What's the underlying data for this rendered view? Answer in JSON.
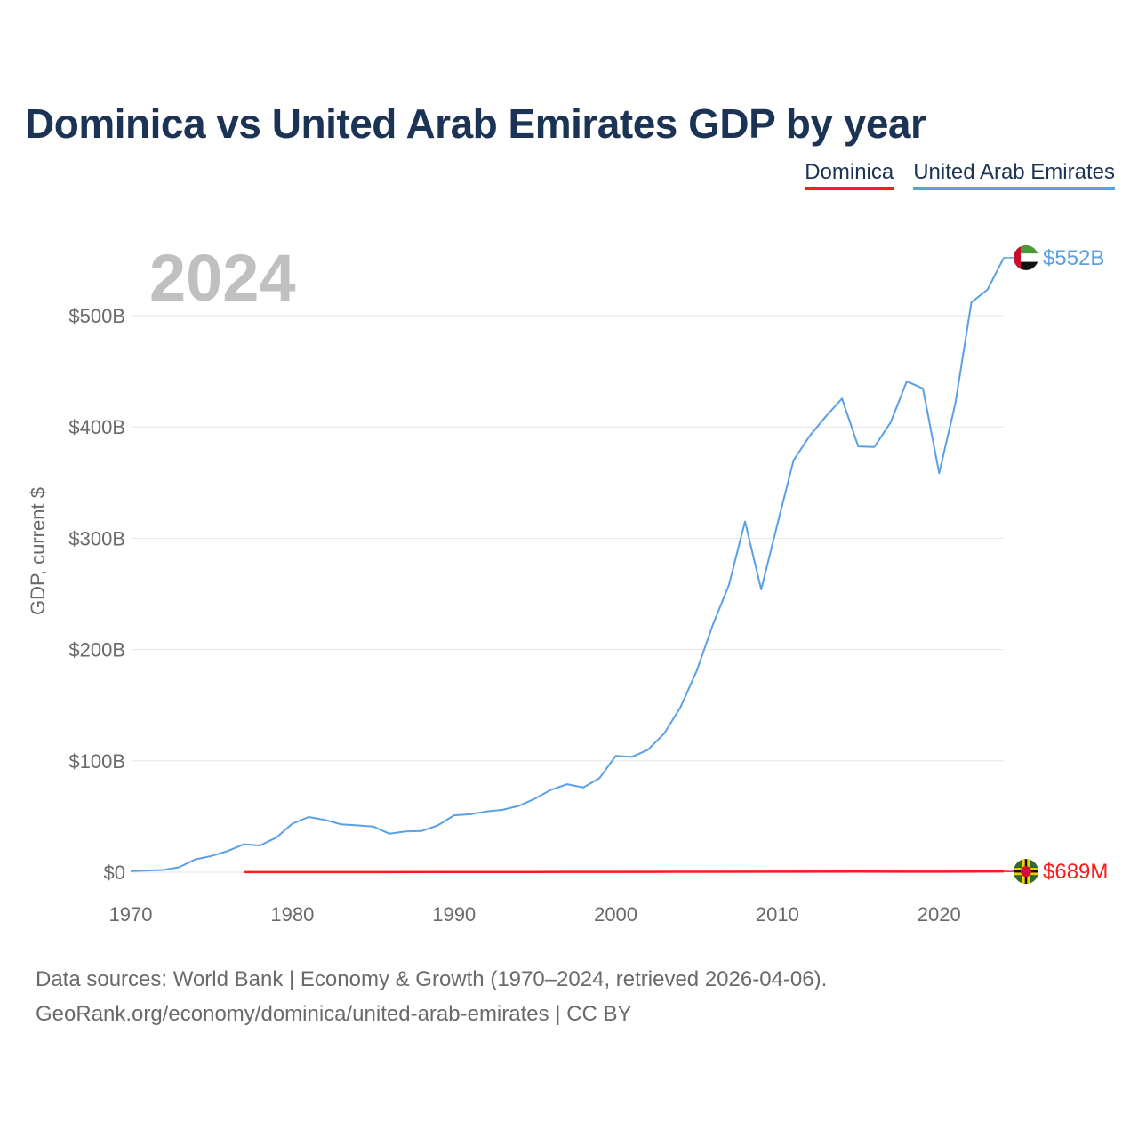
{
  "title": "Dominica vs United Arab Emirates GDP by year",
  "legend": [
    {
      "name": "Dominica",
      "color": "#ff1a1a"
    },
    {
      "name": "United Arab Emirates",
      "color": "#5aa0e6"
    }
  ],
  "year_watermark": "2024",
  "source": {
    "line1": "Data sources: World Bank | Economy & Growth (1970–2024, retrieved 2026-04-06).",
    "line2": "GeoRank.org/economy/dominica/united-arab-emirates | CC BY"
  },
  "chart_data": {
    "type": "line",
    "title": "Dominica vs United Arab Emirates GDP by year",
    "xlabel": "",
    "ylabel": "GDP, current $",
    "xlim": [
      1970,
      2024
    ],
    "ylim": [
      0,
      500
    ],
    "y_unit": "billion US$",
    "x_ticks": [
      1970,
      1980,
      1990,
      2000,
      2010,
      2020
    ],
    "y_ticks": [
      {
        "value": 0,
        "label": "$0"
      },
      {
        "value": 100,
        "label": "$100B"
      },
      {
        "value": 200,
        "label": "$200B"
      },
      {
        "value": 300,
        "label": "$300B"
      },
      {
        "value": 400,
        "label": "$400B"
      },
      {
        "value": 500,
        "label": "$500B"
      }
    ],
    "grid": true,
    "series": [
      {
        "name": "United Arab Emirates",
        "color": "#5aa0e6",
        "end_label": "$552B",
        "flag": "uae-flag",
        "x": [
          1970,
          1971,
          1972,
          1973,
          1974,
          1975,
          1976,
          1977,
          1978,
          1979,
          1980,
          1981,
          1982,
          1983,
          1984,
          1985,
          1986,
          1987,
          1988,
          1989,
          1990,
          1991,
          1992,
          1993,
          1994,
          1995,
          1996,
          1997,
          1998,
          1999,
          2000,
          2001,
          2002,
          2003,
          2004,
          2005,
          2006,
          2007,
          2008,
          2009,
          2010,
          2011,
          2012,
          2013,
          2014,
          2015,
          2016,
          2017,
          2018,
          2019,
          2020,
          2021,
          2022,
          2023,
          2024
        ],
        "values": [
          1,
          1.5,
          2,
          4.5,
          11.5,
          14.5,
          19,
          25,
          24,
          31,
          43.5,
          49.5,
          47,
          43,
          42,
          41,
          34.5,
          36.5,
          37,
          42,
          51,
          52,
          54.5,
          56,
          59.5,
          66,
          74,
          79,
          76,
          84.5,
          104.5,
          103.5,
          110,
          124.5,
          148,
          180.5,
          222,
          258,
          315,
          254,
          312.5,
          370,
          392,
          409.5,
          425.5,
          382.5,
          382,
          404,
          441,
          434.5,
          358.5,
          420.5,
          512,
          523.5,
          552
        ]
      },
      {
        "name": "Dominica",
        "color": "#ff1a1a",
        "end_label": "$689M",
        "flag": "dominica-flag",
        "x": [
          1977,
          1980,
          1985,
          1990,
          1995,
          2000,
          2005,
          2010,
          2015,
          2020,
          2024
        ],
        "values": [
          0.04,
          0.05,
          0.09,
          0.17,
          0.24,
          0.34,
          0.37,
          0.49,
          0.54,
          0.5,
          0.689
        ]
      }
    ]
  }
}
